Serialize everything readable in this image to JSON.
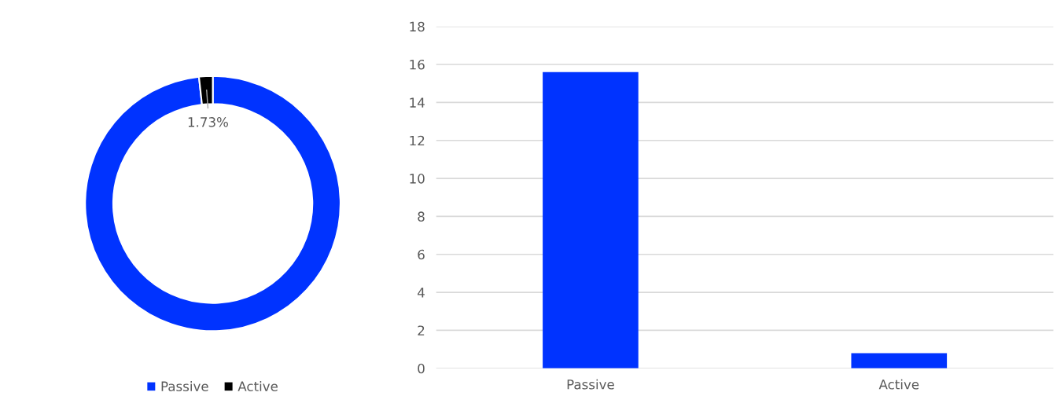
{
  "chart_data": [
    {
      "type": "donut",
      "categories": [
        "Passive",
        "Active"
      ],
      "values": [
        98.27,
        1.73
      ],
      "colors": [
        "#0033ff",
        "#000000"
      ],
      "value_labels": [
        null,
        "1.73%"
      ],
      "legend": "bottom"
    },
    {
      "type": "bar",
      "categories": [
        "Passive",
        "Active"
      ],
      "values": [
        15.6,
        0.8
      ],
      "color": "#0033ff",
      "ylim": [
        0,
        18
      ],
      "yticks": [
        0,
        2,
        4,
        6,
        8,
        10,
        12,
        14,
        16,
        18
      ],
      "grid": "y"
    }
  ]
}
